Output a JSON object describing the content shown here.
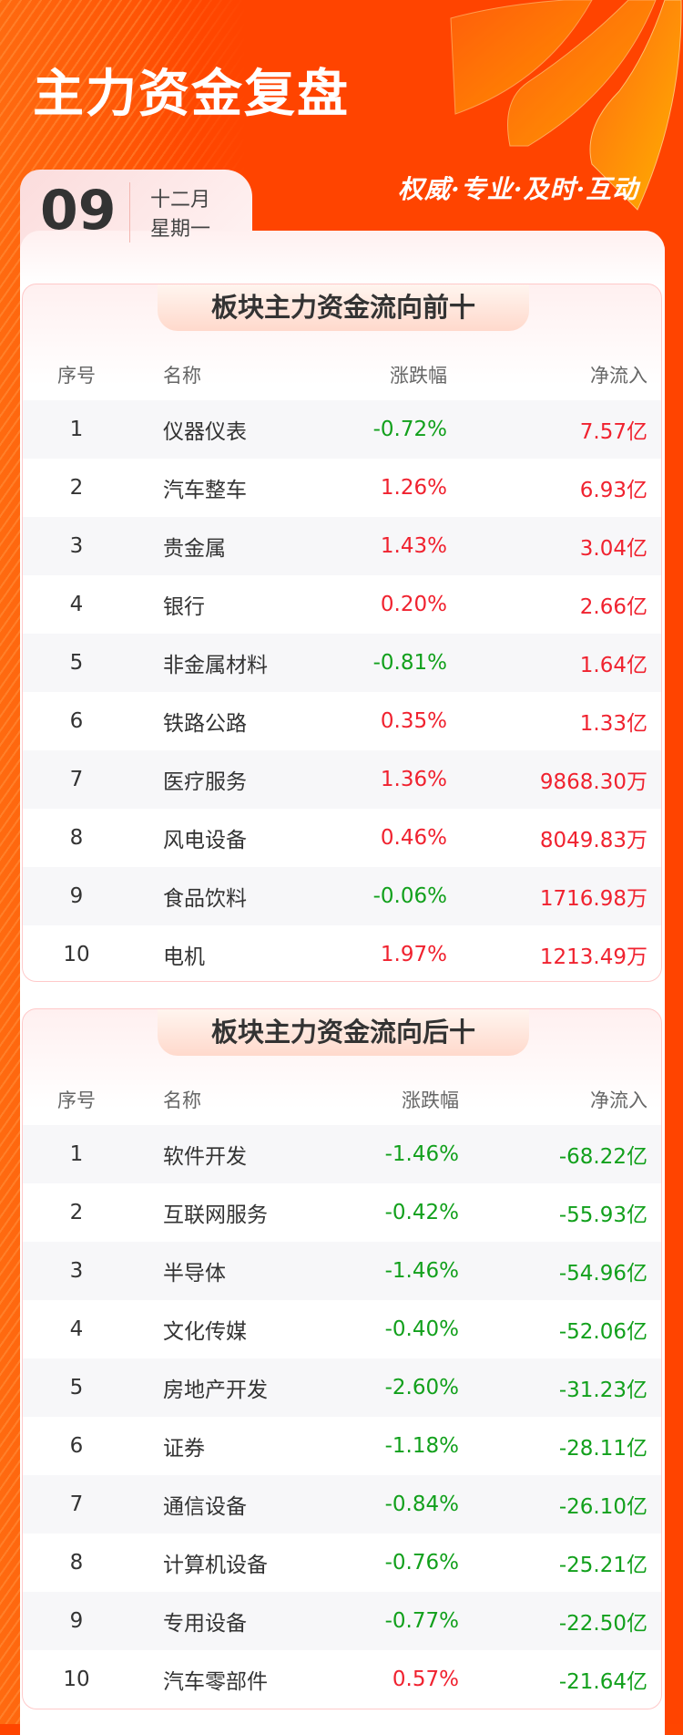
{
  "header": {
    "title": "主力资金复盘",
    "slogan": "权威·专业·及时·互动"
  },
  "date": {
    "day": "09",
    "month": "十二月",
    "weekday": "星期一"
  },
  "colors": {
    "up": "#f0222f",
    "down": "#12a01c",
    "brand": "#ff4500"
  },
  "columns": {
    "index": "序号",
    "name": "名称",
    "change": "涨跌幅",
    "net_inflow": "净流入"
  },
  "top_inflow": {
    "title": "板块主力资金流向前十",
    "rows": [
      {
        "index": "1",
        "name": "仪器仪表",
        "change": "-0.72%",
        "net": "7.57亿"
      },
      {
        "index": "2",
        "name": "汽车整车",
        "change": "1.26%",
        "net": "6.93亿"
      },
      {
        "index": "3",
        "name": "贵金属",
        "change": "1.43%",
        "net": "3.04亿"
      },
      {
        "index": "4",
        "name": "银行",
        "change": "0.20%",
        "net": "2.66亿"
      },
      {
        "index": "5",
        "name": "非金属材料",
        "change": "-0.81%",
        "net": "1.64亿"
      },
      {
        "index": "6",
        "name": "铁路公路",
        "change": "0.35%",
        "net": "1.33亿"
      },
      {
        "index": "7",
        "name": "医疗服务",
        "change": "1.36%",
        "net": "9868.30万"
      },
      {
        "index": "8",
        "name": "风电设备",
        "change": "0.46%",
        "net": "8049.83万"
      },
      {
        "index": "9",
        "name": "食品饮料",
        "change": "-0.06%",
        "net": "1716.98万"
      },
      {
        "index": "10",
        "name": "电机",
        "change": "1.97%",
        "net": "1213.49万"
      }
    ]
  },
  "bottom_inflow": {
    "title": "板块主力资金流向后十",
    "rows": [
      {
        "index": "1",
        "name": "软件开发",
        "change": "-1.46%",
        "net": "-68.22亿"
      },
      {
        "index": "2",
        "name": "互联网服务",
        "change": "-0.42%",
        "net": "-55.93亿"
      },
      {
        "index": "3",
        "name": "半导体",
        "change": "-1.46%",
        "net": "-54.96亿"
      },
      {
        "index": "4",
        "name": "文化传媒",
        "change": "-0.40%",
        "net": "-52.06亿"
      },
      {
        "index": "5",
        "name": "房地产开发",
        "change": "-2.60%",
        "net": "-31.23亿"
      },
      {
        "index": "6",
        "name": "证券",
        "change": "-1.18%",
        "net": "-28.11亿"
      },
      {
        "index": "7",
        "name": "通信设备",
        "change": "-0.84%",
        "net": "-26.10亿"
      },
      {
        "index": "8",
        "name": "计算机设备",
        "change": "-0.76%",
        "net": "-25.21亿"
      },
      {
        "index": "9",
        "name": "专用设备",
        "change": "-0.77%",
        "net": "-22.50亿"
      },
      {
        "index": "10",
        "name": "汽车零部件",
        "change": "0.57%",
        "net": "-21.64亿"
      }
    ]
  }
}
